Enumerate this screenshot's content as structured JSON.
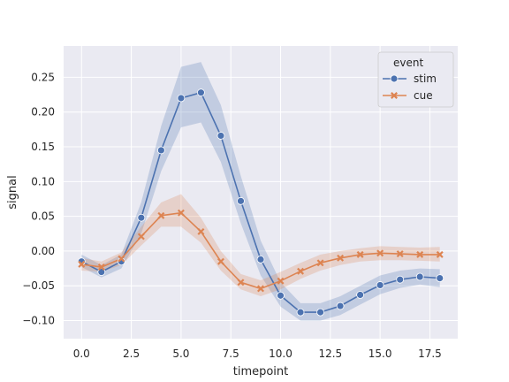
{
  "chart_data": {
    "type": "line",
    "xlabel": "timepoint",
    "ylabel": "signal",
    "xlim": [
      -0.9,
      18.9
    ],
    "ylim": [
      -0.126,
      0.295
    ],
    "xticks": [
      0.0,
      2.5,
      5.0,
      7.5,
      10.0,
      12.5,
      15.0,
      17.5
    ],
    "xtick_labels": [
      "0.0",
      "2.5",
      "5.0",
      "7.5",
      "10.0",
      "12.5",
      "15.0",
      "17.5"
    ],
    "yticks": [
      -0.1,
      -0.05,
      0.0,
      0.05,
      0.1,
      0.15,
      0.2,
      0.25
    ],
    "ytick_labels": [
      "−0.10",
      "−0.05",
      "0.00",
      "0.05",
      "0.10",
      "0.15",
      "0.20",
      "0.25"
    ],
    "grid": true,
    "legend": {
      "title": "event",
      "position": "top-right"
    },
    "x": [
      0,
      1,
      2,
      3,
      4,
      5,
      6,
      7,
      8,
      9,
      10,
      11,
      12,
      13,
      14,
      15,
      16,
      17,
      18
    ],
    "series": [
      {
        "name": "stim",
        "color": "#4c72b0",
        "marker": "circle",
        "values": [
          -0.015,
          -0.03,
          -0.015,
          0.048,
          0.145,
          0.22,
          0.228,
          0.166,
          0.072,
          -0.012,
          -0.064,
          -0.088,
          -0.088,
          -0.079,
          -0.063,
          -0.049,
          -0.041,
          -0.037,
          -0.039
        ],
        "ci_lower": [
          -0.023,
          -0.038,
          -0.025,
          0.025,
          0.115,
          0.178,
          0.185,
          0.128,
          0.04,
          -0.035,
          -0.08,
          -0.1,
          -0.1,
          -0.092,
          -0.077,
          -0.062,
          -0.053,
          -0.048,
          -0.052
        ],
        "ci_upper": [
          -0.005,
          -0.02,
          -0.005,
          0.07,
          0.18,
          0.265,
          0.272,
          0.21,
          0.108,
          0.015,
          -0.045,
          -0.075,
          -0.075,
          -0.065,
          -0.05,
          -0.035,
          -0.028,
          -0.025,
          -0.026
        ]
      },
      {
        "name": "cue",
        "color": "#dd8452",
        "marker": "x",
        "values": [
          -0.019,
          -0.023,
          -0.011,
          0.021,
          0.051,
          0.055,
          0.028,
          -0.015,
          -0.045,
          -0.054,
          -0.043,
          -0.029,
          -0.017,
          -0.01,
          -0.005,
          -0.003,
          -0.004,
          -0.005,
          -0.005
        ],
        "ci_lower": [
          -0.028,
          -0.03,
          -0.02,
          0.008,
          0.035,
          0.035,
          0.012,
          -0.028,
          -0.055,
          -0.065,
          -0.055,
          -0.04,
          -0.028,
          -0.02,
          -0.015,
          -0.013,
          -0.013,
          -0.014,
          -0.015
        ],
        "ci_upper": [
          -0.01,
          -0.015,
          -0.002,
          0.035,
          0.07,
          0.082,
          0.048,
          0.0,
          -0.033,
          -0.042,
          -0.03,
          -0.017,
          -0.005,
          0.0,
          0.004,
          0.007,
          0.006,
          0.005,
          0.006
        ]
      }
    ]
  }
}
